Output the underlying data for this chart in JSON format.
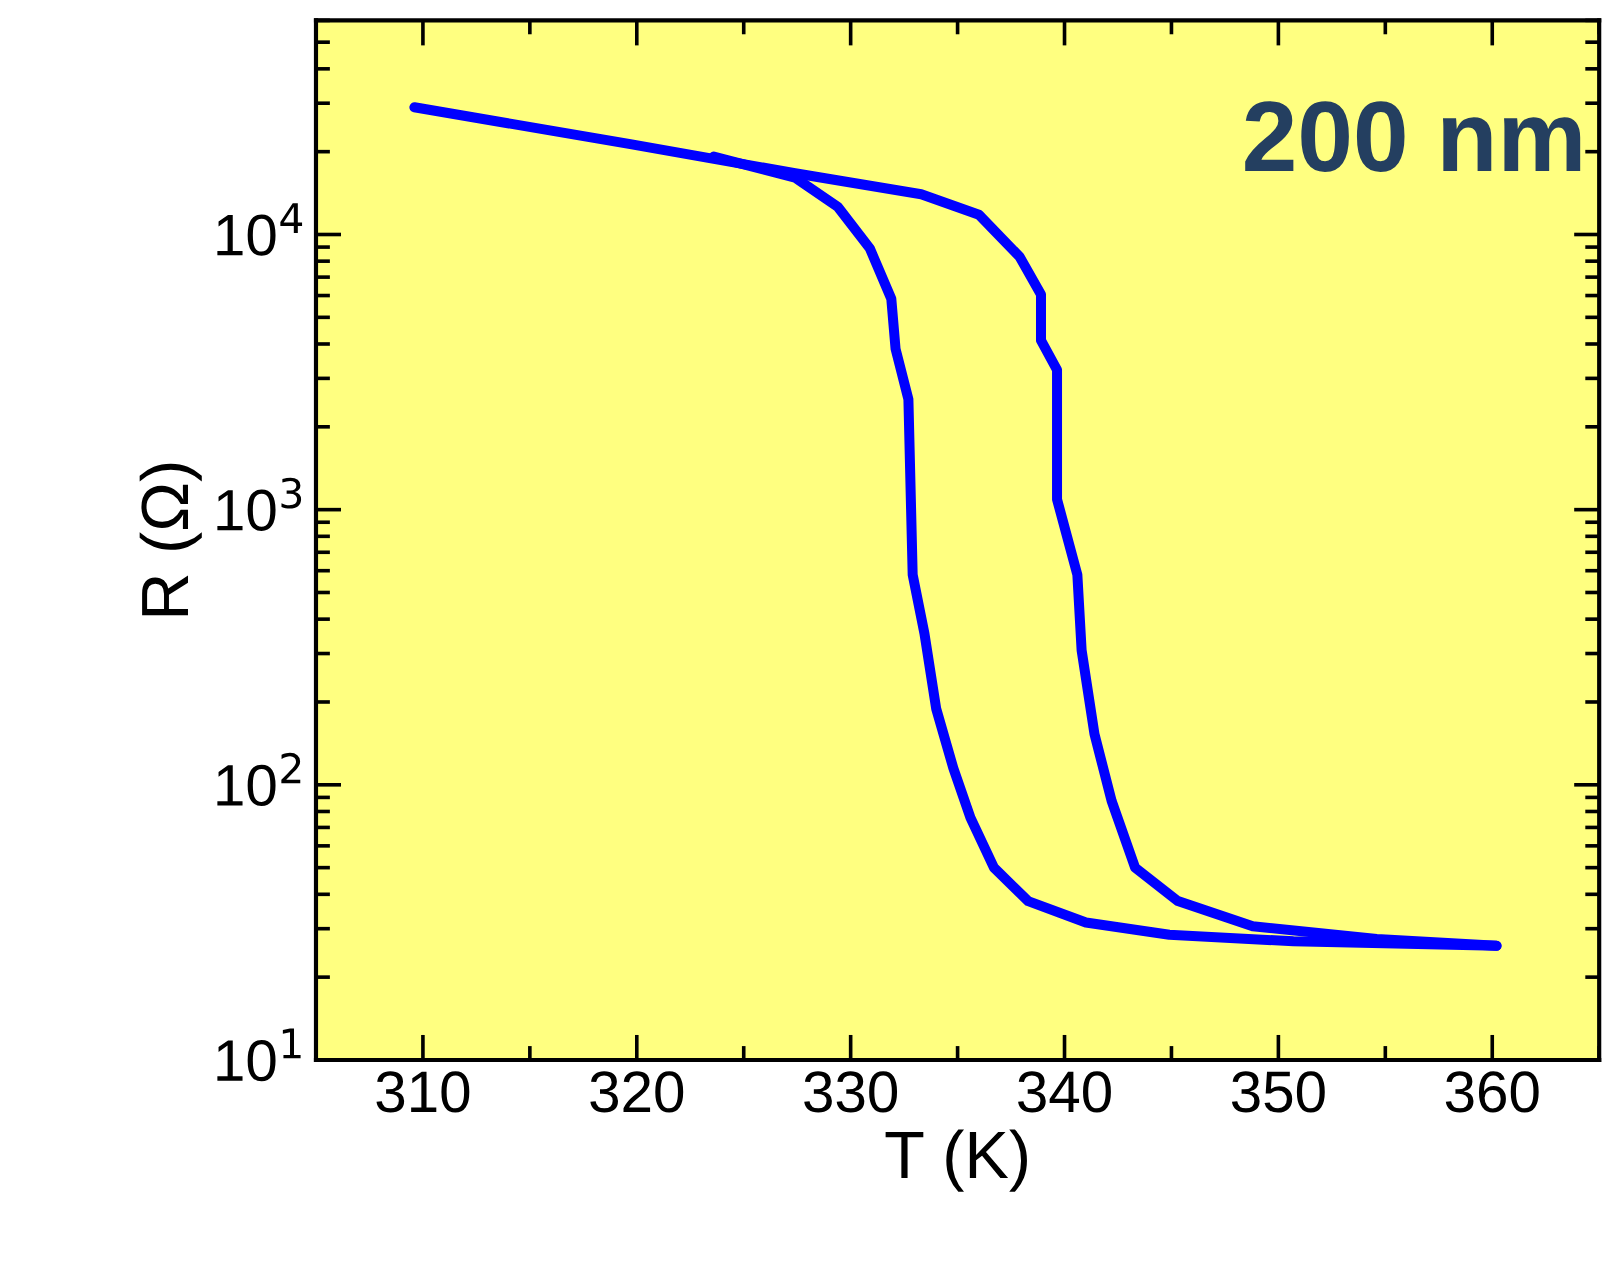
{
  "chart_data": {
    "type": "line",
    "xlabel": "T (K)",
    "ylabel": "R (Ω)",
    "annotations": [
      "200 nm"
    ],
    "log": "y",
    "grid": false,
    "marker": "none",
    "line_style": "solid",
    "xlim": [
      305,
      365
    ],
    "xticks": [
      310,
      320,
      330,
      340,
      350,
      360
    ],
    "ylim": [
      10,
      60000
    ],
    "yticks": [
      {
        "value": 10,
        "label": "10$^{1}$"
      },
      {
        "value": 100,
        "label": "10$^{2}$"
      },
      {
        "value": 1000,
        "label": "10$^{3}$"
      },
      {
        "value": 10000,
        "label": "10$^{4}$"
      }
    ],
    "series": [
      {
        "color": "#0000ff",
        "x": [
          309.6,
          319.7,
          327.4,
          333.3,
          336.0,
          337.9,
          338.9,
          338.9,
          339.65,
          339.65,
          340.6,
          340.8,
          341.4,
          342.2,
          343.3,
          345.3,
          348.8,
          354.6,
          360.2
        ],
        "values": [
          29000,
          21300,
          16700,
          14000,
          11800,
          8300,
          6050,
          4120,
          3220,
          1090,
          580,
          308,
          153,
          87.5,
          50,
          37.8,
          30.6,
          27.5,
          26
        ]
      },
      {
        "color": "#0000ff",
        "x": [
          360.2,
          350.7,
          344.9,
          341.0,
          338.3,
          336.7,
          335.6,
          334.8,
          334.0,
          333.45,
          332.9,
          332.7,
          332.1,
          331.9,
          330.9,
          329.4,
          327.4,
          323.6
        ],
        "values": [
          26,
          27,
          28.5,
          31.6,
          37.8,
          50,
          76,
          115,
          189,
          355,
          580,
          2520,
          3840,
          5840,
          8890,
          12600,
          16100,
          19200
        ]
      }
    ]
  }
}
